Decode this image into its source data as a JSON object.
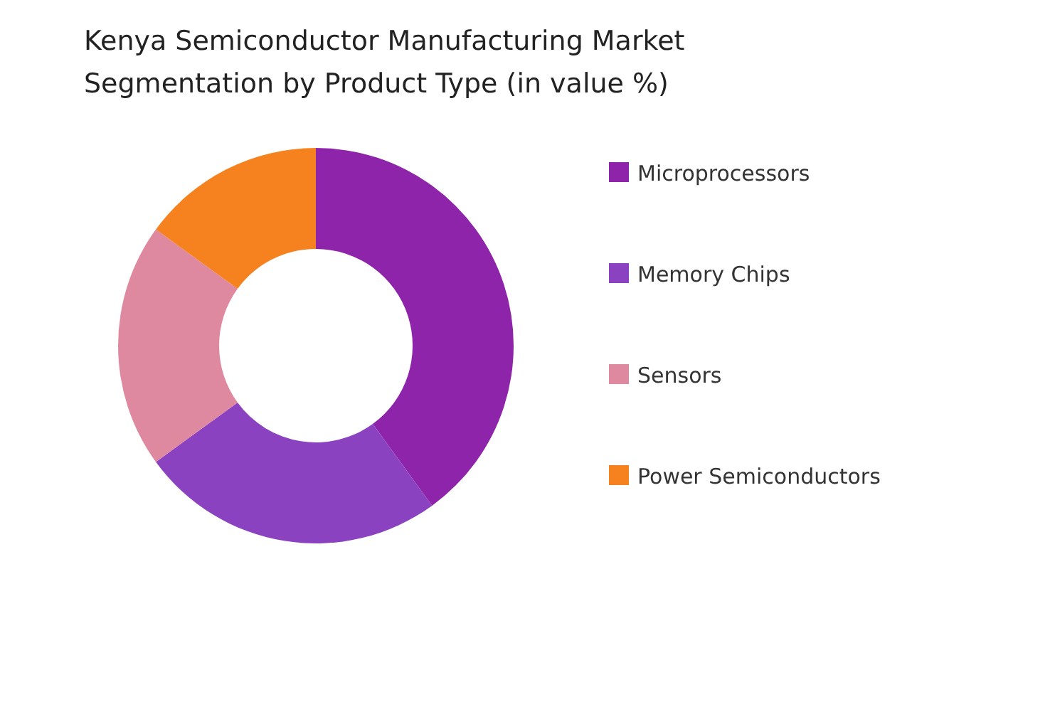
{
  "chart_data": {
    "type": "donut",
    "title": "Kenya Semiconductor Manufacturing Market Segmentation by Product Type (in value %)",
    "categories": [
      "Microprocessors",
      "Memory Chips",
      "Sensors",
      "Power Semiconductors"
    ],
    "values": [
      40,
      25,
      20,
      15
    ],
    "colors": [
      "#8e24aa",
      "#8a42c0",
      "#df89a0",
      "#f5821f"
    ],
    "legend": "right"
  }
}
